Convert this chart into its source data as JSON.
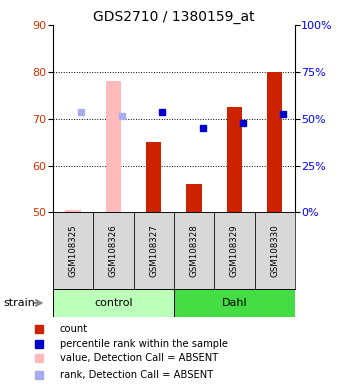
{
  "title": "GDS2710 / 1380159_at",
  "samples": [
    "GSM108325",
    "GSM108326",
    "GSM108327",
    "GSM108328",
    "GSM108329",
    "GSM108330"
  ],
  "bar_values": [
    50.5,
    78.0,
    65.0,
    56.0,
    72.5,
    80.0
  ],
  "bar_absent": [
    true,
    true,
    false,
    false,
    false,
    false
  ],
  "rank_values": [
    71.5,
    70.5,
    71.5,
    68.0,
    69.0,
    71.0
  ],
  "rank_absent": [
    true,
    true,
    false,
    false,
    false,
    false
  ],
  "ylim": [
    50,
    90
  ],
  "yticks": [
    50,
    60,
    70,
    80,
    90
  ],
  "grid_lines": [
    60,
    70,
    80
  ],
  "right_ytick_vals": [
    0,
    12.5,
    25,
    37.5,
    50
  ],
  "right_ytick_labels": [
    "0%",
    "25%",
    "50%",
    "75%",
    "100%"
  ],
  "bar_color_present": "#cc2200",
  "bar_color_absent": "#ffbbbb",
  "rank_color_present": "#0000cc",
  "rank_color_absent": "#aaaaee",
  "color_control": "#bbffbb",
  "color_dahl": "#44dd44",
  "groups": [
    [
      "control",
      0,
      3
    ],
    [
      "Dahl",
      3,
      6
    ]
  ],
  "bar_width": 0.38,
  "title_fontsize": 10,
  "tick_fontsize": 8,
  "legend_items": [
    {
      "color": "#cc2200",
      "label": "count"
    },
    {
      "color": "#0000cc",
      "label": "percentile rank within the sample"
    },
    {
      "color": "#ffbbbb",
      "label": "value, Detection Call = ABSENT"
    },
    {
      "color": "#aaaaee",
      "label": "rank, Detection Call = ABSENT"
    }
  ]
}
